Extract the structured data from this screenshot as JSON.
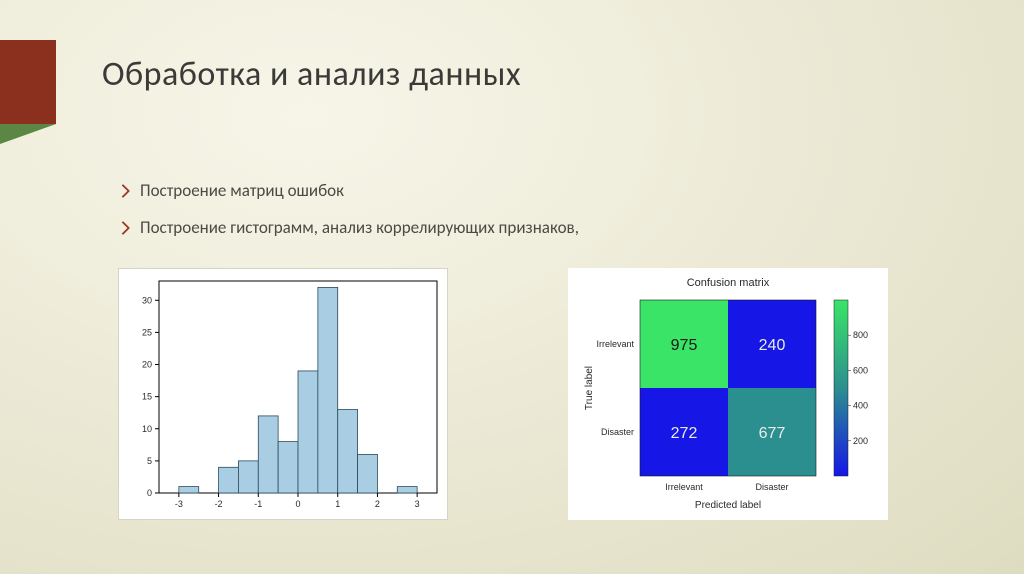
{
  "title": "Обработка и анализ данных",
  "bullets": [
    "Построение матриц ошибок",
    "Построение гистограмм, анализ коррелирующих признаков,"
  ],
  "histogram": {
    "type": "histogram",
    "bar_color": "#a9cde3",
    "bar_edge": "#2a4a5a",
    "background_color": "#ffffff",
    "axis_color": "#000000",
    "xticks": [
      -3,
      -2,
      -1,
      0,
      1,
      2,
      3
    ],
    "yticks": [
      0,
      5,
      10,
      15,
      20,
      25,
      30
    ],
    "ylim": [
      0,
      33
    ],
    "xlim": [
      -3.5,
      3.5
    ],
    "bin_edges": [
      -3.0,
      -2.5,
      -2.0,
      -1.5,
      -1.0,
      -0.5,
      0.0,
      0.5,
      1.0,
      1.5,
      2.0,
      2.5,
      3.0
    ],
    "counts": [
      1,
      0,
      4,
      5,
      12,
      8,
      19,
      32,
      13,
      6,
      0,
      1
    ],
    "tick_fontsize": 9
  },
  "confusion_matrix": {
    "type": "heatmap",
    "title": "Confusion matrix",
    "xlabel": "Predicted label",
    "ylabel": "True label",
    "row_labels": [
      "Irrelevant",
      "Disaster"
    ],
    "col_labels": [
      "Irrelevant",
      "Disaster"
    ],
    "cells": [
      [
        {
          "value": 975,
          "bg": "#3ae467",
          "fg": "#1a1a1a"
        },
        {
          "value": 240,
          "bg": "#1616e6",
          "fg": "#e8ecea"
        }
      ],
      [
        {
          "value": 272,
          "bg": "#1616e6",
          "fg": "#e8ecea"
        },
        {
          "value": 677,
          "bg": "#2c8f8f",
          "fg": "#e8ecea"
        }
      ]
    ],
    "colorbar": {
      "stops": [
        {
          "p": 0,
          "c": "#1616e6"
        },
        {
          "p": 0.5,
          "c": "#2c8f8f"
        },
        {
          "p": 1,
          "c": "#3ae467"
        }
      ],
      "ticks": [
        "200",
        "400",
        "600",
        "800"
      ]
    },
    "title_fontsize": 11,
    "label_fontsize": 10,
    "tick_fontsize": 9,
    "cell_fontsize": 16
  },
  "accent_color": "#8b2f1f"
}
